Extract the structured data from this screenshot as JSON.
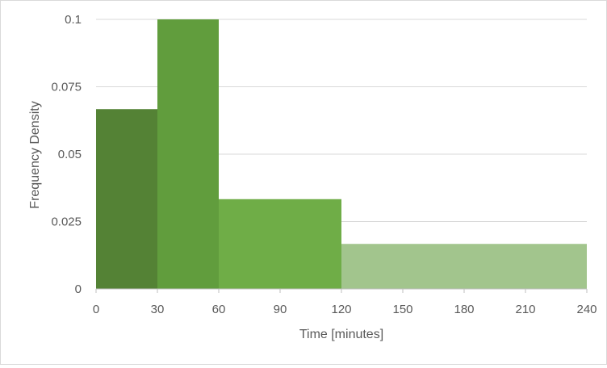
{
  "chart_data": {
    "type": "bar",
    "title": "",
    "xlabel": "Time [minutes]",
    "ylabel": "Frequency Density",
    "xlim": [
      0,
      240
    ],
    "ylim": [
      0,
      0.1
    ],
    "grid": true,
    "x_ticks": [
      0,
      30,
      60,
      90,
      120,
      150,
      180,
      210,
      240
    ],
    "y_ticks": [
      0,
      0.025,
      0.05,
      0.075,
      0.1
    ],
    "y_tick_labels": [
      "0",
      "0.025",
      "0.05",
      "0.075",
      "0.1"
    ],
    "bins": [
      {
        "start": 0,
        "end": 30,
        "value": 0.0667,
        "color": "#548235"
      },
      {
        "start": 30,
        "end": 60,
        "value": 0.1,
        "color": "#619d3d"
      },
      {
        "start": 60,
        "end": 120,
        "value": 0.0333,
        "color": "#6fad47"
      },
      {
        "start": 120,
        "end": 240,
        "value": 0.0167,
        "color": "#a2c58d"
      }
    ],
    "colors": {
      "gridline": "#d9d9d9",
      "axis": "#bfbfbf",
      "text": "#595959"
    }
  }
}
